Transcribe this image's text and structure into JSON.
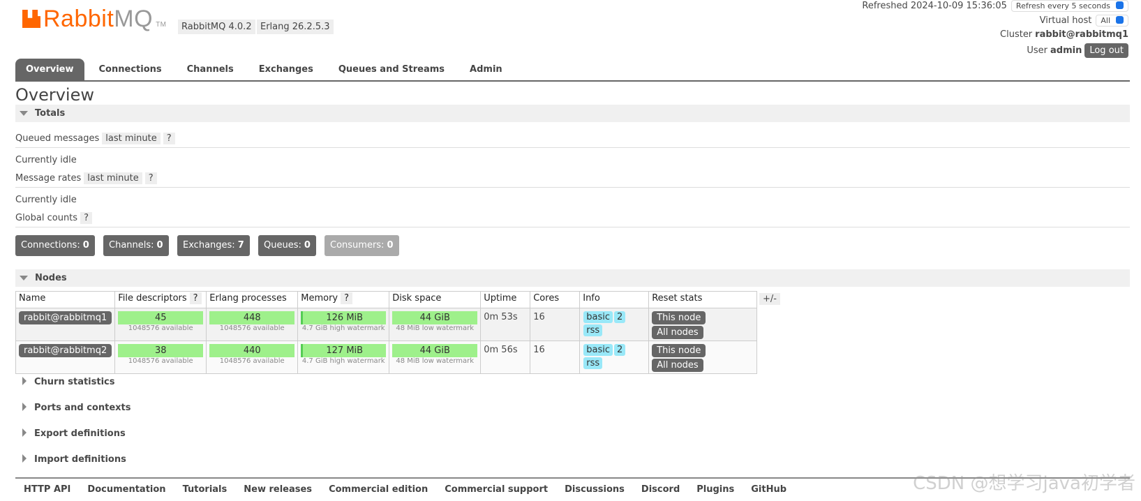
{
  "header": {
    "logo_a": "Rabbit",
    "logo_b": "MQ",
    "tm": "TM",
    "version": "RabbitMQ 4.0.2",
    "erlang": "Erlang 26.2.5.3",
    "refreshed": "Refreshed 2024-10-09 15:36:05",
    "refresh_select": "Refresh every 5 seconds",
    "vhost_label": "Virtual host",
    "vhost_value": "All",
    "cluster_label": "Cluster",
    "cluster": "rabbit@rabbitmq1",
    "user_label": "User",
    "user": "admin",
    "logout": "Log out"
  },
  "tabs": [
    "Overview",
    "Connections",
    "Channels",
    "Exchanges",
    "Queues and Streams",
    "Admin"
  ],
  "page_title": "Overview",
  "help": "?",
  "totals": {
    "title": "Totals",
    "queued_label": "Queued messages",
    "queued_range": "last minute",
    "queued_status": "Currently idle",
    "rates_label": "Message rates",
    "rates_range": "last minute",
    "rates_status": "Currently idle",
    "global_label": "Global counts",
    "counts": [
      {
        "label": "Connections:",
        "value": "0"
      },
      {
        "label": "Channels:",
        "value": "0"
      },
      {
        "label": "Exchanges:",
        "value": "7"
      },
      {
        "label": "Queues:",
        "value": "0"
      },
      {
        "label": "Consumers:",
        "value": "0"
      }
    ]
  },
  "nodes": {
    "title": "Nodes",
    "columns": [
      "Name",
      "File descriptors",
      "Erlang processes",
      "Memory",
      "Disk space",
      "Uptime",
      "Cores",
      "Info",
      "Reset stats"
    ],
    "toggle": "+/-",
    "rows": [
      {
        "name": "rabbit@rabbitmq1",
        "fd": "45",
        "fd_sub": "1048576 available",
        "erl": "448",
        "erl_sub": "1048576 available",
        "mem": "126 MiB",
        "mem_sub": "4.7 GiB high watermark",
        "disk": "44 GiB",
        "disk_sub": "48 MiB low watermark",
        "uptime": "0m 53s",
        "cores": "16",
        "info": [
          "basic",
          "2",
          "rss"
        ],
        "reset": [
          "This node",
          "All nodes"
        ]
      },
      {
        "name": "rabbit@rabbitmq2",
        "fd": "38",
        "fd_sub": "1048576 available",
        "erl": "440",
        "erl_sub": "1048576 available",
        "mem": "127 MiB",
        "mem_sub": "4.7 GiB high watermark",
        "disk": "44 GiB",
        "disk_sub": "48 MiB low watermark",
        "uptime": "0m 56s",
        "cores": "16",
        "info": [
          "basic",
          "2",
          "rss"
        ],
        "reset": [
          "This node",
          "All nodes"
        ]
      }
    ]
  },
  "sections": [
    "Churn statistics",
    "Ports and contexts",
    "Export definitions",
    "Import definitions"
  ],
  "footer": [
    "HTTP API",
    "Documentation",
    "Tutorials",
    "New releases",
    "Commercial edition",
    "Commercial support",
    "Discussions",
    "Discord",
    "Plugins",
    "GitHub"
  ],
  "watermark": "CSDN @想学习java初学者"
}
